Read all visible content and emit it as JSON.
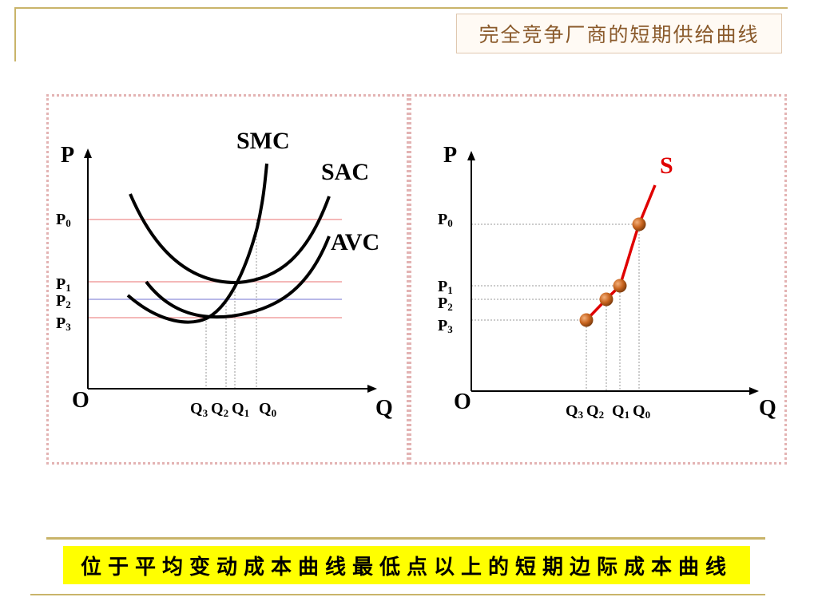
{
  "title": "完全竞争厂商的短期供给曲线",
  "caption": "位于平均变动成本曲线最低点以上的短期边际成本曲线",
  "left_diagram": {
    "axis_y": "P",
    "axis_x": "Q",
    "origin": "O",
    "curves": {
      "smc": "SMC",
      "sac": "SAC",
      "avc": "AVC"
    },
    "price_labels": [
      {
        "base": "P",
        "sub": "0"
      },
      {
        "base": "P",
        "sub": "1"
      },
      {
        "base": "P",
        "sub": "2"
      },
      {
        "base": "P",
        "sub": "3"
      }
    ],
    "quantity_labels": [
      {
        "base": "Q",
        "sub": "3"
      },
      {
        "base": "Q",
        "sub": "2"
      },
      {
        "base": "Q",
        "sub": "1"
      },
      {
        "base": "Q",
        "sub": "0"
      }
    ]
  },
  "right_diagram": {
    "axis_y": "P",
    "axis_x": "Q",
    "origin": "O",
    "supply_label": "S",
    "price_labels": [
      {
        "base": "P",
        "sub": "0"
      },
      {
        "base": "P",
        "sub": "1"
      },
      {
        "base": "P",
        "sub": "2"
      },
      {
        "base": "P",
        "sub": "3"
      }
    ],
    "quantity_labels": [
      {
        "base": "Q",
        "sub": "3"
      },
      {
        "base": "Q",
        "sub": "2"
      },
      {
        "base": "Q",
        "sub": "1"
      },
      {
        "base": "Q",
        "sub": "0"
      }
    ]
  },
  "colors": {
    "price_line": "#f0a0a0",
    "supply_curve": "#e00000",
    "point_fill": "#c8641e",
    "caption_bg": "#ffff00",
    "title_text": "#8a5a2b"
  }
}
